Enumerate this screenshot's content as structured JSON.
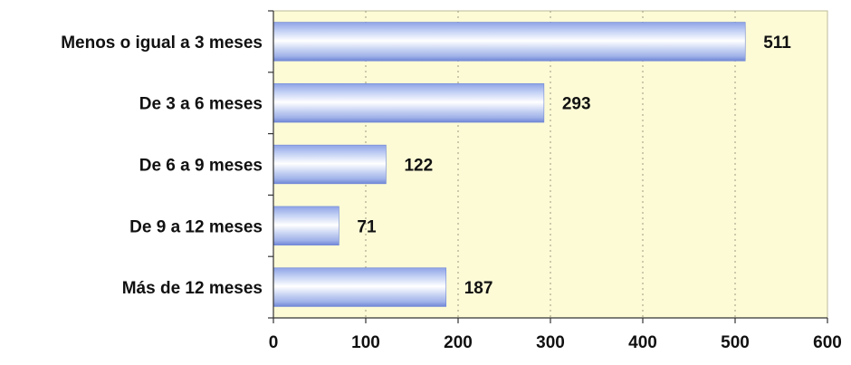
{
  "chart_data": {
    "type": "bar",
    "orientation": "horizontal",
    "categories": [
      "Menos o igual a 3 meses",
      "De  3 a 6 meses",
      "De  6 a  9 meses",
      "De 9 a 12 meses",
      "Más de 12 meses"
    ],
    "values": [
      511,
      293,
      122,
      71,
      187
    ],
    "xlim": [
      0,
      600
    ],
    "xticks": [
      0,
      100,
      200,
      300,
      400,
      500,
      600
    ],
    "grid": true,
    "legend": "none",
    "colors": {
      "plot_bg": "#fdfbd6",
      "bar_light": "#ffffff",
      "bar_mid": "#c9d6f5",
      "bar_dark": "#6f86d6",
      "grid": "#9a9a80",
      "axis": "#333333"
    }
  }
}
